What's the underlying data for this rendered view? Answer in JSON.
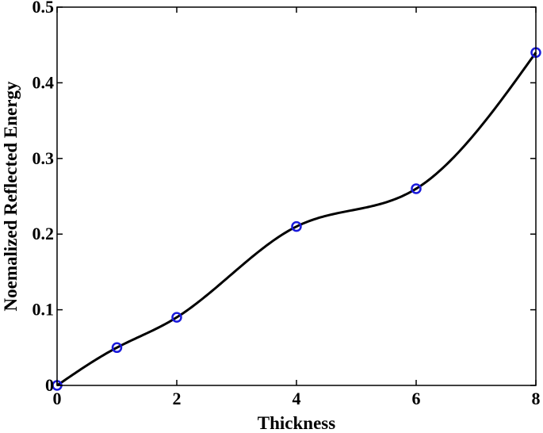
{
  "chart_data": {
    "type": "line",
    "xlabel": "Thickness",
    "ylabel": "Noemalized Reflected Energy",
    "xlim": [
      0,
      8
    ],
    "ylim": [
      0,
      0.5
    ],
    "xticks": [
      0,
      2,
      4,
      6,
      8
    ],
    "yticks": [
      0,
      0.1,
      0.2,
      0.3,
      0.4,
      0.5
    ],
    "xtick_labels": [
      "0",
      "2",
      "4",
      "6",
      "8"
    ],
    "ytick_labels": [
      "0",
      "0.1",
      "0.2",
      "0.3",
      "0.4",
      "0.5"
    ],
    "grid": false,
    "series": [
      {
        "style": "smooth-curve-with-circle-markers",
        "line_color": "#000000",
        "marker_color": "#1a1adb",
        "x": [
          0,
          1,
          2,
          4,
          6,
          8
        ],
        "y": [
          0,
          0.05,
          0.09,
          0.21,
          0.26,
          0.44
        ]
      }
    ]
  }
}
